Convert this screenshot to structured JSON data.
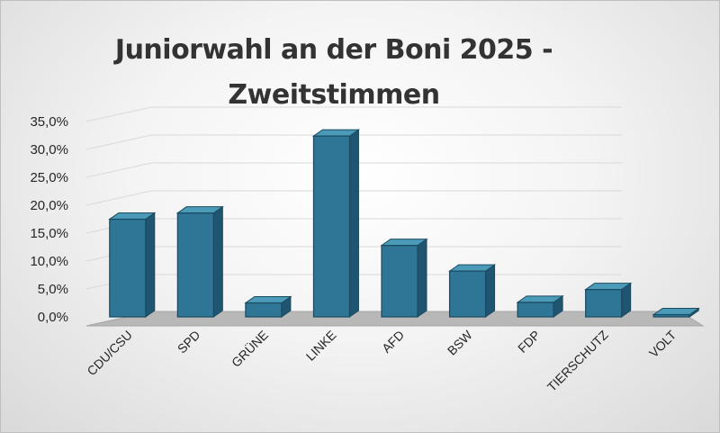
{
  "chart_data": {
    "type": "bar",
    "title": "Juniorwahl an der Boni 2025 - Zweitstimmen",
    "categories": [
      "CDU/CSU",
      "SPD",
      "GRÜNE",
      "LINKE",
      "AFD",
      "BSW",
      "FDP",
      "TIERSCHUTZ",
      "VOLT"
    ],
    "values": [
      17.5,
      18.6,
      2.5,
      32.4,
      12.8,
      8.2,
      2.6,
      4.9,
      0.4
    ],
    "yticks": [
      "0,0%",
      "5,0%",
      "10,0%",
      "15,0%",
      "20,0%",
      "25,0%",
      "30,0%",
      "35,0%"
    ],
    "ylim": [
      0,
      35
    ],
    "bar_color": "#2E7596",
    "style": "3d-column",
    "grid": true
  }
}
